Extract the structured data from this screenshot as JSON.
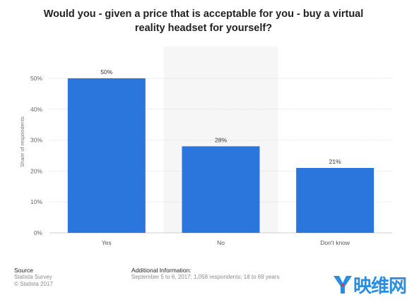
{
  "chart_data": {
    "type": "bar",
    "title_lines": [
      "Would you - given a price that is acceptable for you - buy a virtual",
      "reality headset for yourself?"
    ],
    "categories": [
      "Yes",
      "No",
      "Don't know"
    ],
    "values": [
      50,
      28,
      21
    ],
    "value_labels": [
      "50%",
      "28%",
      "21%"
    ],
    "ylabel": "Share of respondents",
    "ylim": [
      0,
      50
    ],
    "yticks": [
      "0%",
      "10%",
      "20%",
      "30%",
      "40%",
      "50%"
    ],
    "ytick_values": [
      0,
      10,
      20,
      30,
      40,
      50
    ],
    "grid": true,
    "bar_color": "#2a76dc"
  },
  "footer": {
    "source_title": "Source",
    "source_lines": [
      "Statista Survey",
      "© Statista 2017"
    ],
    "info_title": "Additional Information:",
    "info_text": "September 5 to 6, 2017; 1,058 respondents; 18 to 69 years"
  },
  "brand": {
    "text": "映维网",
    "color": "#2a8de0"
  }
}
